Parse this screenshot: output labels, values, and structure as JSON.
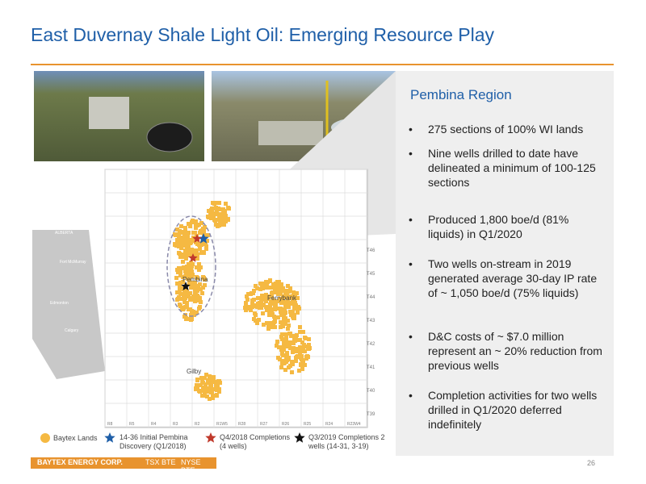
{
  "header": {
    "title": "East Duvernay Shale Light Oil: Emerging Resource Play"
  },
  "panel": {
    "title": "Pembina Region",
    "bullets": [
      "275 sections of 100% WI lands",
      "Nine wells drilled to date have delineated a minimum of 100-125 sections",
      "Produced 1,800 boe/d (81% liquids) in Q1/2020",
      "Two wells on-stream in 2019 generated average 30-day IP rate of ~ 1,050 boe/d (75% liquids)",
      "D&C costs of ~ $7.0 million represent an ~ 20% reduction from previous wells",
      "Completion activities for two wells drilled in Q1/2020 deferred indefinitely"
    ]
  },
  "map": {
    "places": [
      "Pembina",
      "Ferrybank",
      "Gilby"
    ],
    "townships": [
      "T46",
      "T45",
      "T44",
      "T43",
      "T42",
      "T41",
      "T40",
      "T39"
    ],
    "ranges": [
      "R8",
      "R5",
      "R4",
      "R3",
      "R2",
      "R1W5",
      "R28",
      "R27",
      "R26",
      "R25",
      "R24",
      "R23W4"
    ],
    "inset": [
      "ALBERTA",
      "Fort McMurray",
      "Edmonton",
      "Calgary"
    ]
  },
  "legend": [
    "Baytex Lands",
    "14-36 Initial Pembina Discovery (Q1/2018)",
    "Q4/2018 Completions (4 wells)",
    "Q3/2019 Completions 2 wells (14-31, 3-19)"
  ],
  "footer": {
    "company": "BAYTEX ENERGY CORP.",
    "tsx": "TSX BTE",
    "nyse": "NYSE BTE",
    "page": "26"
  }
}
